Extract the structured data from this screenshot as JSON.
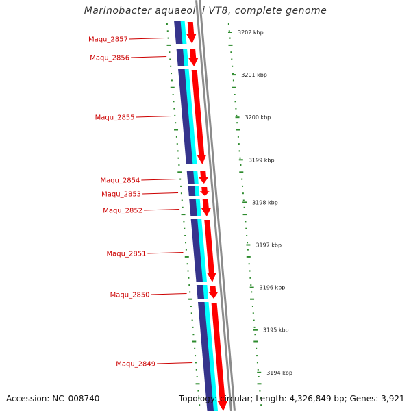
{
  "title": "Marinobacter aquaeolei VT8, complete genome",
  "footer": {
    "accession": "Accession: NC_008740",
    "stats": "Topology: circular; Length: 4,326,849 bp; Genes: 3,921"
  },
  "colors": {
    "forward_cds": "#ff0000",
    "forward_gene": "#00ffff",
    "reverse_cds": "#36348c",
    "backbone": "#8c8c8c",
    "label": "#cc0000",
    "tick": "#2e8b2e",
    "background": "#ffffff"
  },
  "genes": [
    {
      "name": "Maqu_2857",
      "strand": "+"
    },
    {
      "name": "Maqu_2856",
      "strand": "+"
    },
    {
      "name": "Maqu_2855",
      "strand": "+"
    },
    {
      "name": "Maqu_2854",
      "strand": "+"
    },
    {
      "name": "Maqu_2853",
      "strand": "+"
    },
    {
      "name": "Maqu_2852",
      "strand": "+"
    },
    {
      "name": "Maqu_2851",
      "strand": "+"
    },
    {
      "name": "Maqu_2850",
      "strand": "+"
    },
    {
      "name": "Maqu_2849",
      "strand": "+"
    }
  ],
  "ruler": [
    {
      "label": "3202 kbp",
      "kbp": 3202
    },
    {
      "label": "3201 kbp",
      "kbp": 3201
    },
    {
      "label": "3200 kbp",
      "kbp": 3200
    },
    {
      "label": "3199 kbp",
      "kbp": 3199
    },
    {
      "label": "3198 kbp",
      "kbp": 3198
    },
    {
      "label": "3197 kbp",
      "kbp": 3197
    },
    {
      "label": "3196 kbp",
      "kbp": 3196
    },
    {
      "label": "3195 kbp",
      "kbp": 3195
    },
    {
      "label": "3194 kbp",
      "kbp": 3194
    }
  ]
}
